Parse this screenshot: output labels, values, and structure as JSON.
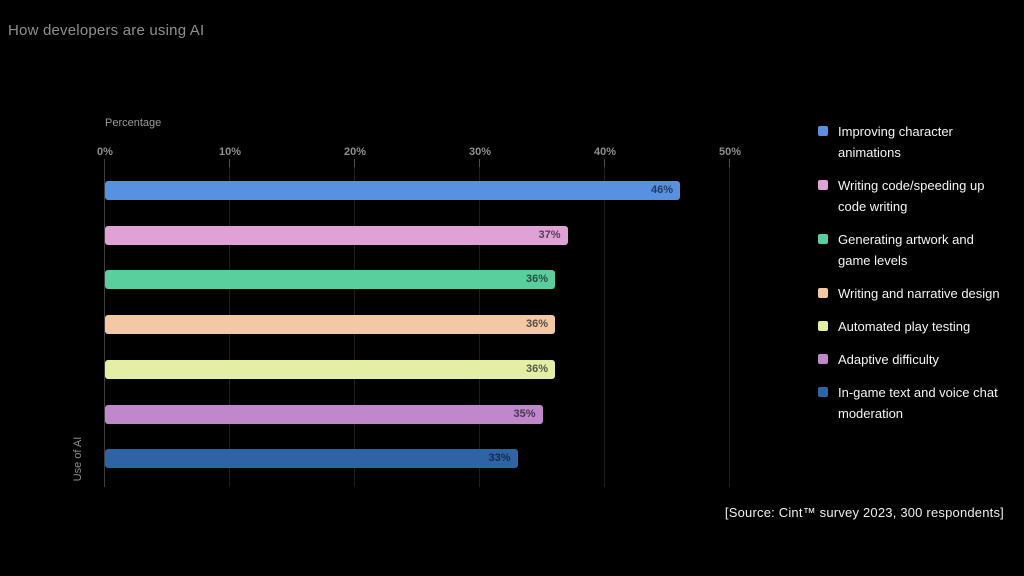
{
  "page": {
    "background_color": "#000000",
    "title": "How developers are using AI"
  },
  "chart_data": {
    "type": "bar",
    "orientation": "horizontal",
    "title": "How developers are using AI",
    "xlabel": "Percentage",
    "ylabel": "Use of AI",
    "xlim": [
      0,
      50
    ],
    "xticks": [
      0,
      10,
      20,
      30,
      40,
      50
    ],
    "xtick_labels": [
      "0%",
      "10%",
      "20%",
      "30%",
      "40%",
      "50%"
    ],
    "grid": "vertical gridlines on",
    "legend_position": "right",
    "categories": [
      "Improving character animations",
      "Writing code/speeding up code writing",
      "Generating artwork and game levels",
      "Writing and narrative design",
      "Automated play testing",
      "Adaptive difficulty",
      "In-game text and voice chat moderation"
    ],
    "values": [
      46,
      37,
      36,
      36,
      36,
      35,
      33
    ],
    "value_labels": [
      "46%",
      "37%",
      "36%",
      "36%",
      "36%",
      "35%",
      "33%"
    ],
    "colors": [
      "#5890E2",
      "#E0A2D6",
      "#58CF9C",
      "#F2C9A4",
      "#E4EEA5",
      "#C088CB",
      "#2E64A5"
    ]
  },
  "legend": {
    "items": [
      {
        "label": "Improving character\nanimations",
        "color": "#5890E2"
      },
      {
        "label": "Writing code/speeding up\ncode writing",
        "color": "#E0A2D6"
      },
      {
        "label": "Generating artwork and\ngame levels",
        "color": "#58CF9C"
      },
      {
        "label": "Writing and narrative design",
        "color": "#F2C9A4"
      },
      {
        "label": "Automated play testing",
        "color": "#E4EEA5"
      },
      {
        "label": "Adaptive difficulty",
        "color": "#C088CB"
      },
      {
        "label": "In-game text and voice chat\nmoderation",
        "color": "#2E64A5"
      }
    ]
  },
  "source": "[Source: Cint™ survey 2023, 300 respondents]"
}
